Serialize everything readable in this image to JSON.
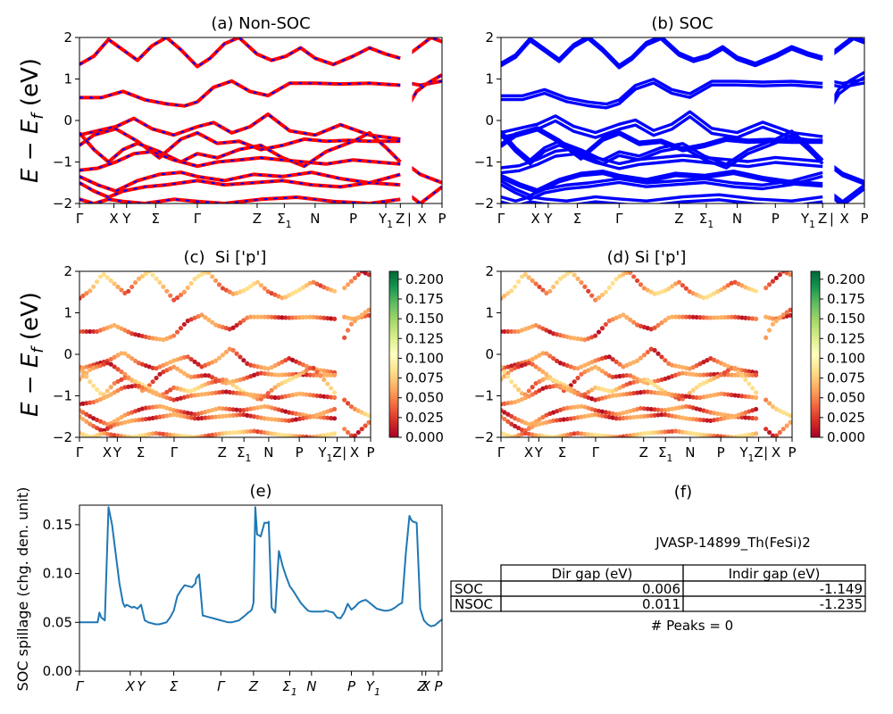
{
  "figure": {
    "colors": {
      "nonsoc_line": "#ff0000",
      "nonsoc_dash": "#0000ff",
      "soc_line": "#0000ff",
      "spillage_line": "#1f77b4"
    },
    "colormap": "RdYlGn"
  },
  "chart_data": [
    {
      "id": "a",
      "type": "line",
      "title": "(a) Non-SOC",
      "ylabel": "E − E_f (eV)",
      "ylim": [
        -2,
        2
      ],
      "yticks": [
        "−2",
        "−1",
        "0",
        "1",
        "2"
      ],
      "xlim": [
        0,
        100
      ],
      "xticks": [
        {
          "label": "Γ",
          "x": 0
        },
        {
          "label": "X",
          "x": 9.5
        },
        {
          "label": "Y",
          "x": 13
        },
        {
          "label": "Σ",
          "x": 21
        },
        {
          "label": "Γ",
          "x": 32.5
        },
        {
          "label": "Z",
          "x": 49
        },
        {
          "label": "Σ",
          "sub": "1",
          "x": 56.5
        },
        {
          "label": "N",
          "x": 65
        },
        {
          "label": "P",
          "x": 75.5
        },
        {
          "label": "Y",
          "sub": "1",
          "x": 84.5
        },
        {
          "label": "Z",
          "x": 88.5
        },
        {
          "label": "|",
          "x": 91
        },
        {
          "label": "X",
          "x": 94.5
        },
        {
          "label": "P",
          "x": 100
        }
      ],
      "style": "red line with blue dashes",
      "series": [
        {
          "x": [
            0,
            4,
            8,
            12,
            16,
            20,
            24,
            28,
            32.5,
            36,
            40,
            44,
            49,
            53,
            57,
            61,
            65,
            70,
            75.5,
            80,
            84.5,
            88.5
          ],
          "y": [
            1.35,
            1.55,
            1.95,
            1.7,
            1.45,
            1.8,
            2.0,
            1.7,
            1.3,
            1.5,
            1.85,
            2.0,
            1.6,
            1.45,
            1.55,
            1.75,
            1.5,
            1.35,
            1.55,
            1.75,
            1.6,
            1.5
          ]
        },
        {
          "x": [
            0,
            6,
            12,
            18,
            24,
            29,
            32.5,
            37,
            42,
            47,
            52,
            58,
            65,
            72,
            80,
            88.5
          ],
          "y": [
            0.55,
            0.55,
            0.7,
            0.5,
            0.4,
            0.35,
            0.45,
            0.8,
            0.95,
            0.7,
            0.6,
            0.9,
            0.9,
            0.88,
            0.9,
            0.85
          ]
        },
        {
          "x": [
            0,
            5,
            10,
            15,
            20,
            26,
            32.5,
            37,
            42,
            47,
            52,
            58,
            65,
            72,
            80,
            88.5
          ],
          "y": [
            -0.35,
            -0.25,
            -0.15,
            0.05,
            -0.2,
            -0.35,
            -0.15,
            -0.05,
            -0.3,
            -0.15,
            0.15,
            -0.25,
            -0.35,
            -0.1,
            -0.35,
            -0.45
          ]
        },
        {
          "x": [
            0,
            4,
            10,
            16,
            22,
            28,
            32.5,
            38,
            44,
            50,
            56,
            62,
            68,
            74,
            80,
            86,
            88.5
          ],
          "y": [
            -0.6,
            -0.35,
            -0.2,
            -0.5,
            -0.9,
            -0.45,
            -0.3,
            -0.55,
            -0.5,
            -0.7,
            -0.6,
            -0.45,
            -0.5,
            -0.48,
            -0.5,
            -0.5,
            -0.5
          ]
        },
        {
          "x": [
            0,
            4,
            8,
            12,
            16,
            22,
            28,
            32.5,
            38,
            44,
            50,
            56,
            62,
            68,
            75.5,
            80,
            84.5,
            88.5
          ],
          "y": [
            -0.3,
            -0.7,
            -1.0,
            -0.7,
            -0.55,
            -0.75,
            -1.0,
            -0.8,
            -0.9,
            -0.7,
            -0.6,
            -0.9,
            -1.1,
            -0.75,
            -0.5,
            -0.3,
            -0.65,
            -1.0
          ]
        },
        {
          "x": [
            0,
            5,
            10,
            15,
            20,
            26,
            32.5,
            38,
            44,
            50,
            56,
            62,
            68,
            75.5,
            82,
            88.5
          ],
          "y": [
            -1.2,
            -1.15,
            -1.0,
            -0.8,
            -0.75,
            -0.95,
            -1.1,
            -1.0,
            -0.95,
            -0.9,
            -0.95,
            -1.0,
            -1.05,
            -0.95,
            -1.0,
            -1.05
          ]
        },
        {
          "x": [
            0,
            5,
            10,
            16,
            22,
            28,
            32.5,
            40,
            48,
            56,
            64,
            72,
            80,
            88.5
          ],
          "y": [
            -1.35,
            -1.55,
            -1.7,
            -1.45,
            -1.3,
            -1.25,
            -1.35,
            -1.45,
            -1.3,
            -1.35,
            -1.25,
            -1.4,
            -1.5,
            -1.55
          ]
        },
        {
          "x": [
            0,
            4,
            8,
            12,
            18,
            24,
            32.5,
            40,
            48,
            56,
            64,
            72,
            80,
            88.5
          ],
          "y": [
            -1.5,
            -1.7,
            -1.85,
            -1.7,
            -1.6,
            -1.55,
            -1.45,
            -1.55,
            -1.5,
            -1.45,
            -1.55,
            -1.6,
            -1.5,
            -1.3
          ]
        },
        {
          "x": [
            0,
            4,
            8,
            12,
            18,
            26,
            32.5,
            40,
            50,
            60,
            70,
            80,
            88.5
          ],
          "y": [
            -1.9,
            -2.0,
            -1.9,
            -1.95,
            -2.0,
            -1.9,
            -1.95,
            -2.0,
            -1.9,
            -1.85,
            -1.95,
            -2.0,
            -1.9
          ]
        },
        {
          "x": [
            91,
            94,
            97,
            100
          ],
          "y": [
            1.6,
            1.8,
            2.0,
            1.9
          ]
        },
        {
          "x": [
            91,
            94,
            97,
            100
          ],
          "y": [
            0.9,
            0.85,
            0.9,
            0.95
          ]
        },
        {
          "x": [
            91,
            93,
            96,
            100
          ],
          "y": [
            0.4,
            0.7,
            0.9,
            1.1
          ]
        },
        {
          "x": [
            91,
            94,
            97,
            100
          ],
          "y": [
            -1.1,
            -1.3,
            -1.4,
            -1.5
          ]
        },
        {
          "x": [
            91,
            94,
            97,
            100
          ],
          "y": [
            -1.8,
            -2.0,
            -1.8,
            -1.6
          ]
        }
      ]
    },
    {
      "id": "b",
      "type": "line",
      "title": "(b) SOC",
      "ylim": [
        -2,
        2
      ],
      "yticks": [
        "−2",
        "−1",
        "0",
        "1",
        "2"
      ],
      "xlim": [
        0,
        100
      ],
      "style": "thick blue line",
      "same_ticks_as": "a"
    },
    {
      "id": "c",
      "type": "scatter",
      "title": "(c)  Si ['p']",
      "ylabel": "E − E_f (eV)",
      "ylim": [
        -2,
        2
      ],
      "yticks": [
        "−2",
        "−1",
        "0",
        "1",
        "2"
      ],
      "xlim": [
        0,
        100
      ],
      "colorbar": {
        "range": [
          0,
          0.21
        ],
        "ticks": [
          "0.000",
          "0.025",
          "0.050",
          "0.075",
          "0.100",
          "0.125",
          "0.150",
          "0.175",
          "0.200"
        ]
      }
    },
    {
      "id": "d",
      "type": "scatter",
      "title": "(d) Si ['p']",
      "ylim": [
        -2,
        2
      ],
      "yticks": [
        "−2",
        "−1",
        "0",
        "1",
        "2"
      ],
      "xlim": [
        0,
        100
      ],
      "colorbar": {
        "range": [
          0,
          0.21
        ],
        "ticks": [
          "0.000",
          "0.025",
          "0.050",
          "0.075",
          "0.100",
          "0.125",
          "0.150",
          "0.175",
          "0.200"
        ]
      }
    },
    {
      "id": "e",
      "type": "line",
      "title": "(e)",
      "ylabel": "SOC spillage (chg. den. unit)",
      "ylim": [
        0,
        0.17
      ],
      "yticks": [
        "0.00",
        "0.05",
        "0.10",
        "0.15"
      ],
      "xlim": [
        0,
        100
      ],
      "xticks": [
        {
          "label": "Γ",
          "x": 0
        },
        {
          "label": "X",
          "x": 14
        },
        {
          "label": "Y",
          "x": 17
        },
        {
          "label": "Σ",
          "x": 26
        },
        {
          "label": "Γ",
          "x": 39
        },
        {
          "label": "Z",
          "x": 48
        },
        {
          "label": "Σ",
          "sub": "1",
          "x": 58
        },
        {
          "label": "N",
          "x": 64
        },
        {
          "label": "P",
          "x": 75
        },
        {
          "label": "Y",
          "sub": "1",
          "x": 81
        },
        {
          "label": "Z",
          "x": 94.5
        },
        {
          "label": "X",
          "x": 95.5
        },
        {
          "label": "P",
          "x": 99
        }
      ],
      "x": [
        0,
        3,
        5,
        5.5,
        6,
        7,
        8,
        9,
        10,
        11,
        12,
        12.5,
        13,
        14,
        14.5,
        15,
        16,
        17,
        18,
        19,
        20,
        21,
        22,
        23,
        24,
        25,
        26,
        27,
        28,
        29,
        30,
        31,
        32,
        32.2,
        33,
        34,
        35,
        36,
        37,
        38,
        39,
        40,
        41,
        42,
        43,
        44,
        45,
        46,
        46.5,
        47,
        47.5,
        48,
        48.5,
        49,
        50,
        51,
        52,
        52.2,
        53,
        54,
        55,
        56,
        57,
        58,
        59,
        60,
        61,
        62,
        63,
        64,
        65,
        66,
        67,
        68,
        69,
        70,
        71,
        72,
        73,
        74,
        75,
        76,
        77,
        78,
        79,
        80,
        81,
        82,
        83,
        84,
        85,
        86,
        87,
        88,
        89,
        90,
        91,
        91.5,
        92,
        93,
        94,
        95,
        96,
        97,
        98,
        99,
        100
      ],
      "y": [
        0.05,
        0.05,
        0.05,
        0.06,
        0.055,
        0.052,
        0.168,
        0.15,
        0.12,
        0.09,
        0.07,
        0.066,
        0.068,
        0.066,
        0.065,
        0.066,
        0.064,
        0.068,
        0.052,
        0.05,
        0.049,
        0.048,
        0.048,
        0.049,
        0.05,
        0.055,
        0.062,
        0.077,
        0.083,
        0.088,
        0.087,
        0.086,
        0.09,
        0.095,
        0.099,
        0.057,
        0.056,
        0.055,
        0.054,
        0.053,
        0.052,
        0.051,
        0.05,
        0.05,
        0.051,
        0.052,
        0.055,
        0.058,
        0.06,
        0.061,
        0.063,
        0.07,
        0.168,
        0.14,
        0.138,
        0.152,
        0.152,
        0.153,
        0.065,
        0.06,
        0.123,
        0.108,
        0.097,
        0.087,
        0.082,
        0.076,
        0.07,
        0.066,
        0.062,
        0.061,
        0.061,
        0.061,
        0.061,
        0.062,
        0.061,
        0.06,
        0.055,
        0.054,
        0.06,
        0.069,
        0.063,
        0.066,
        0.07,
        0.072,
        0.073,
        0.07,
        0.067,
        0.064,
        0.063,
        0.062,
        0.062,
        0.063,
        0.065,
        0.068,
        0.07,
        0.12,
        0.159,
        0.155,
        0.153,
        0.152,
        0.064,
        0.052,
        0.048,
        0.046,
        0.047,
        0.05,
        0.053
      ]
    },
    {
      "id": "f",
      "type": "table",
      "title": "(f)",
      "caption": "JVASP-14899_Th(FeSi)2",
      "columns": [
        "",
        "Dir gap (eV)",
        "Indir gap (eV)"
      ],
      "rows": [
        [
          "SOC",
          "0.006",
          "-1.149"
        ],
        [
          "NSOC",
          "0.011",
          "-1.235"
        ]
      ],
      "footer": "# Peaks = 0"
    }
  ]
}
